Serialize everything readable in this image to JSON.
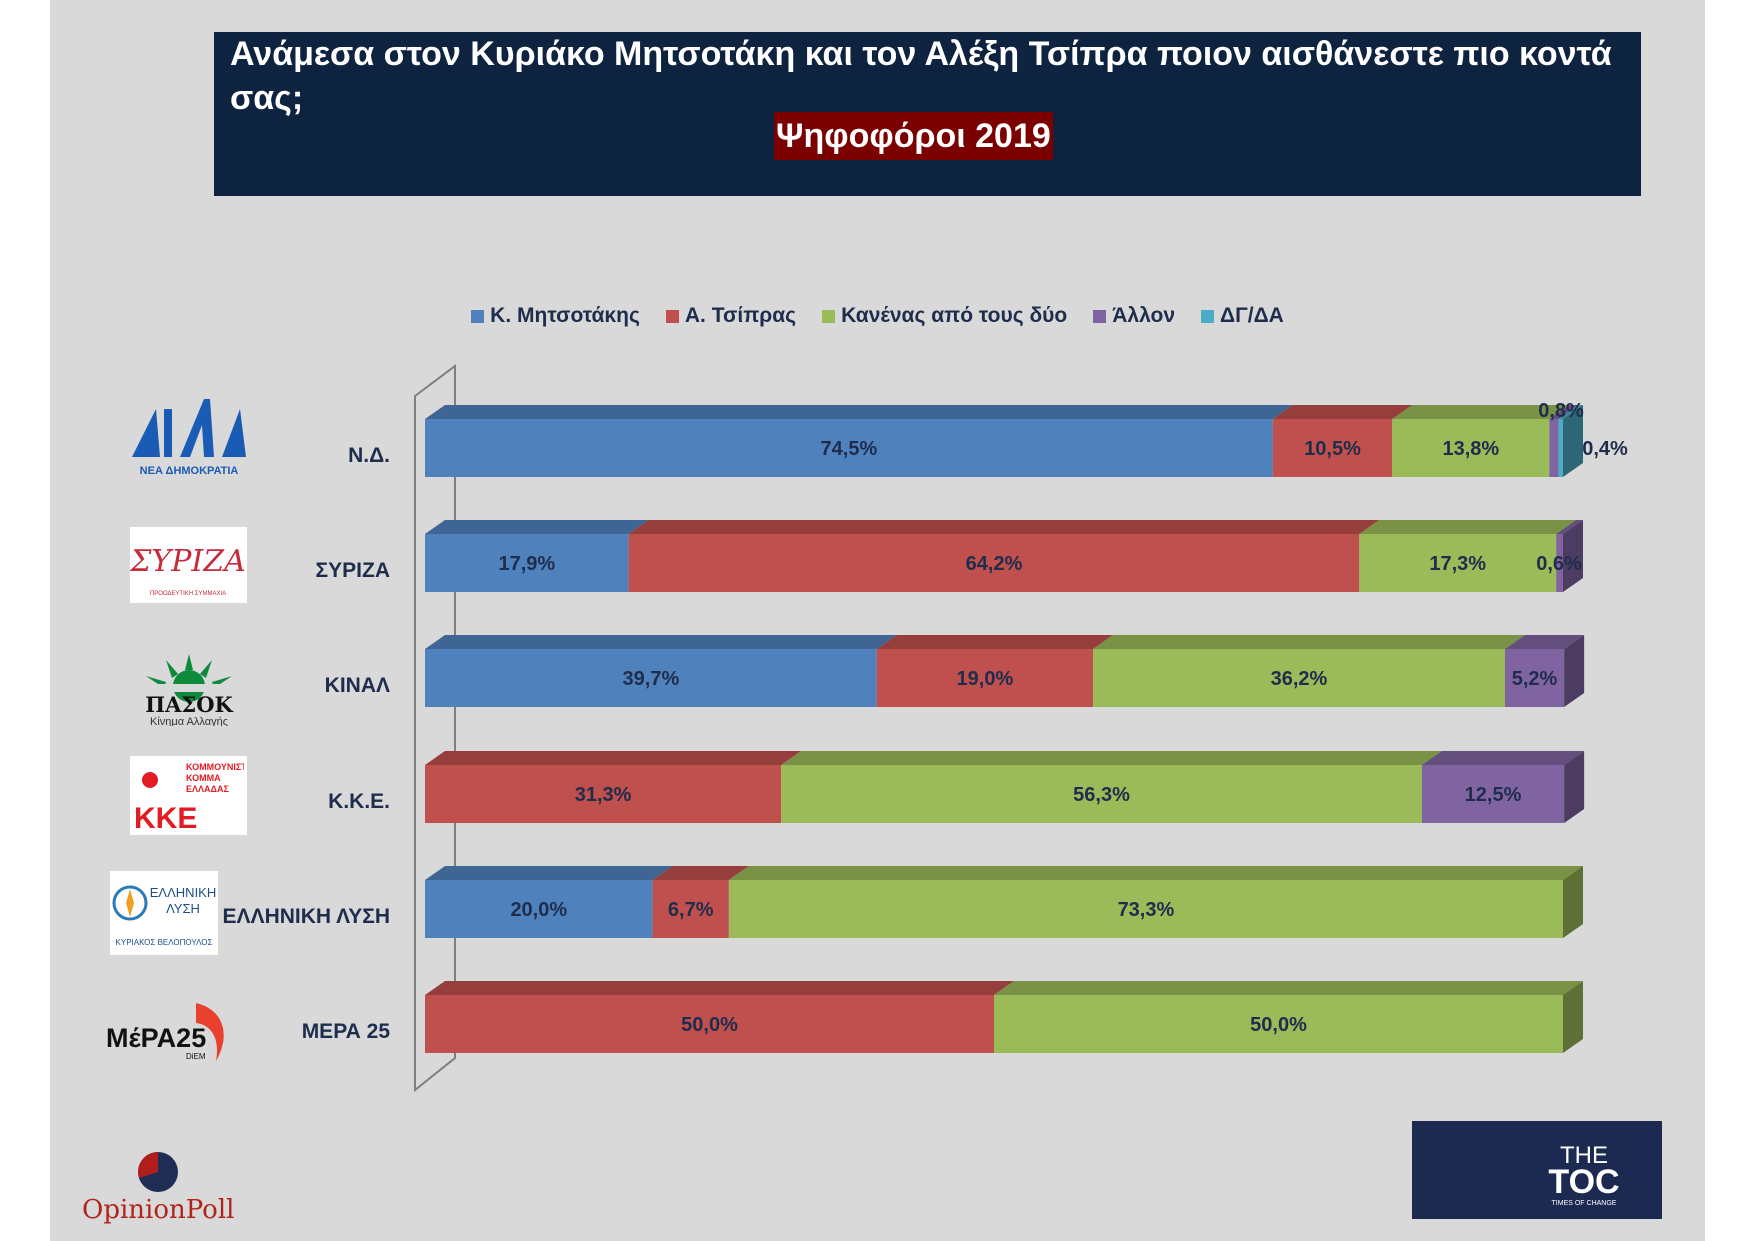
{
  "header": {
    "title": "Ανάμεσα στον Κυριάκο Μητσοτάκη και τον Αλέξη Τσίπρα ποιον αισθάνεστε πιο κοντά σας;",
    "subtitle": "Ψηφοφόροι 2019"
  },
  "branding": {
    "pollster": "OpinionPoll",
    "media_top": "THE",
    "media_main": "TOC",
    "media_tagline": "TIMES OF CHANGE"
  },
  "logos": {
    "nd_main": "ΝΔ",
    "nd_caption": "ΝΕΑ ΔΗΜΟΚΡΑΤΙΑ",
    "syriza_main": "ΣΥΡΙΖΑ",
    "syriza_caption": "ΠΡΟΟΔΕΥΤΙΚΗ ΣΥΜΜΑΧΙΑ",
    "pasok_main": "ΠΑΣΟΚ",
    "pasok_caption": "Κίνημα Αλλαγής",
    "kke_main": "ΚΚΕ",
    "kke_caption": "ΚΟΜΜΟΥΝΙΣΤΙΚΟ ΚΟΜΜΑ ΕΛΛΑΔΑΣ",
    "el_main": "ΕΛΛΗΝΙΚΗ ΛΥΣΗ",
    "el_caption": "ΚΥΡΙΑΚΟΣ ΒΕΛΟΠΟΥΛΟΣ",
    "mera_main": "ΜέΡΑ25",
    "mera_caption": "DiEM"
  },
  "colors": {
    "Κ. Μητσοτάκης": "#4f81bd",
    "Α. Τσίπρας": "#c0504d",
    "Κανένας από τους δύο": "#9bbb59",
    "Άλλον": "#8064a2",
    "ΔΓ/ΔΑ": "#4bacc6"
  },
  "chart_data": {
    "type": "bar",
    "orientation": "horizontal",
    "stacked": "100%",
    "legend_position": "top",
    "grid": false,
    "xlim": [
      0,
      100
    ],
    "title": "Ανάμεσα στον Κυριάκο Μητσοτάκη και τον Αλέξη Τσίπρα ποιον αισθάνεστε πιο κοντά σας;",
    "subtitle": "Ψηφοφόροι 2019",
    "categories": [
      "Ν.Δ.",
      "ΣΥΡΙΖΑ",
      "ΚΙΝΑΛ",
      "Κ.Κ.Ε.",
      "ΕΛΛΗΝΙΚΗ ΛΥΣΗ",
      "ΜΕΡΑ 25"
    ],
    "series": [
      {
        "name": "Κ. Μητσοτάκης",
        "values": [
          74.5,
          17.9,
          39.7,
          0,
          20.0,
          0
        ],
        "labels": [
          "74,5%",
          "17,9%",
          "39,7%",
          "",
          "20,0%",
          ""
        ]
      },
      {
        "name": "Α. Τσίπρας",
        "values": [
          10.5,
          64.2,
          19.0,
          31.3,
          6.7,
          50.0
        ],
        "labels": [
          "10,5%",
          "64,2%",
          "19,0%",
          "31,3%",
          "6,7%",
          "50,0%"
        ]
      },
      {
        "name": "Κανένας από τους δύο",
        "values": [
          13.8,
          17.3,
          36.2,
          56.3,
          73.3,
          50.0
        ],
        "labels": [
          "13,8%",
          "17,3%",
          "36,2%",
          "56,3%",
          "73,3%",
          "50,0%"
        ]
      },
      {
        "name": "Άλλον",
        "values": [
          0.8,
          0.6,
          5.2,
          12.5,
          0,
          0
        ],
        "labels": [
          "0,8%",
          "0,6%",
          "5,2%",
          "12,5%",
          "",
          ""
        ]
      },
      {
        "name": "ΔΓ/ΔΑ",
        "values": [
          0.4,
          0,
          0,
          0,
          0,
          0
        ],
        "labels": [
          "0,4%",
          "",
          "",
          "",
          "",
          ""
        ]
      }
    ]
  }
}
